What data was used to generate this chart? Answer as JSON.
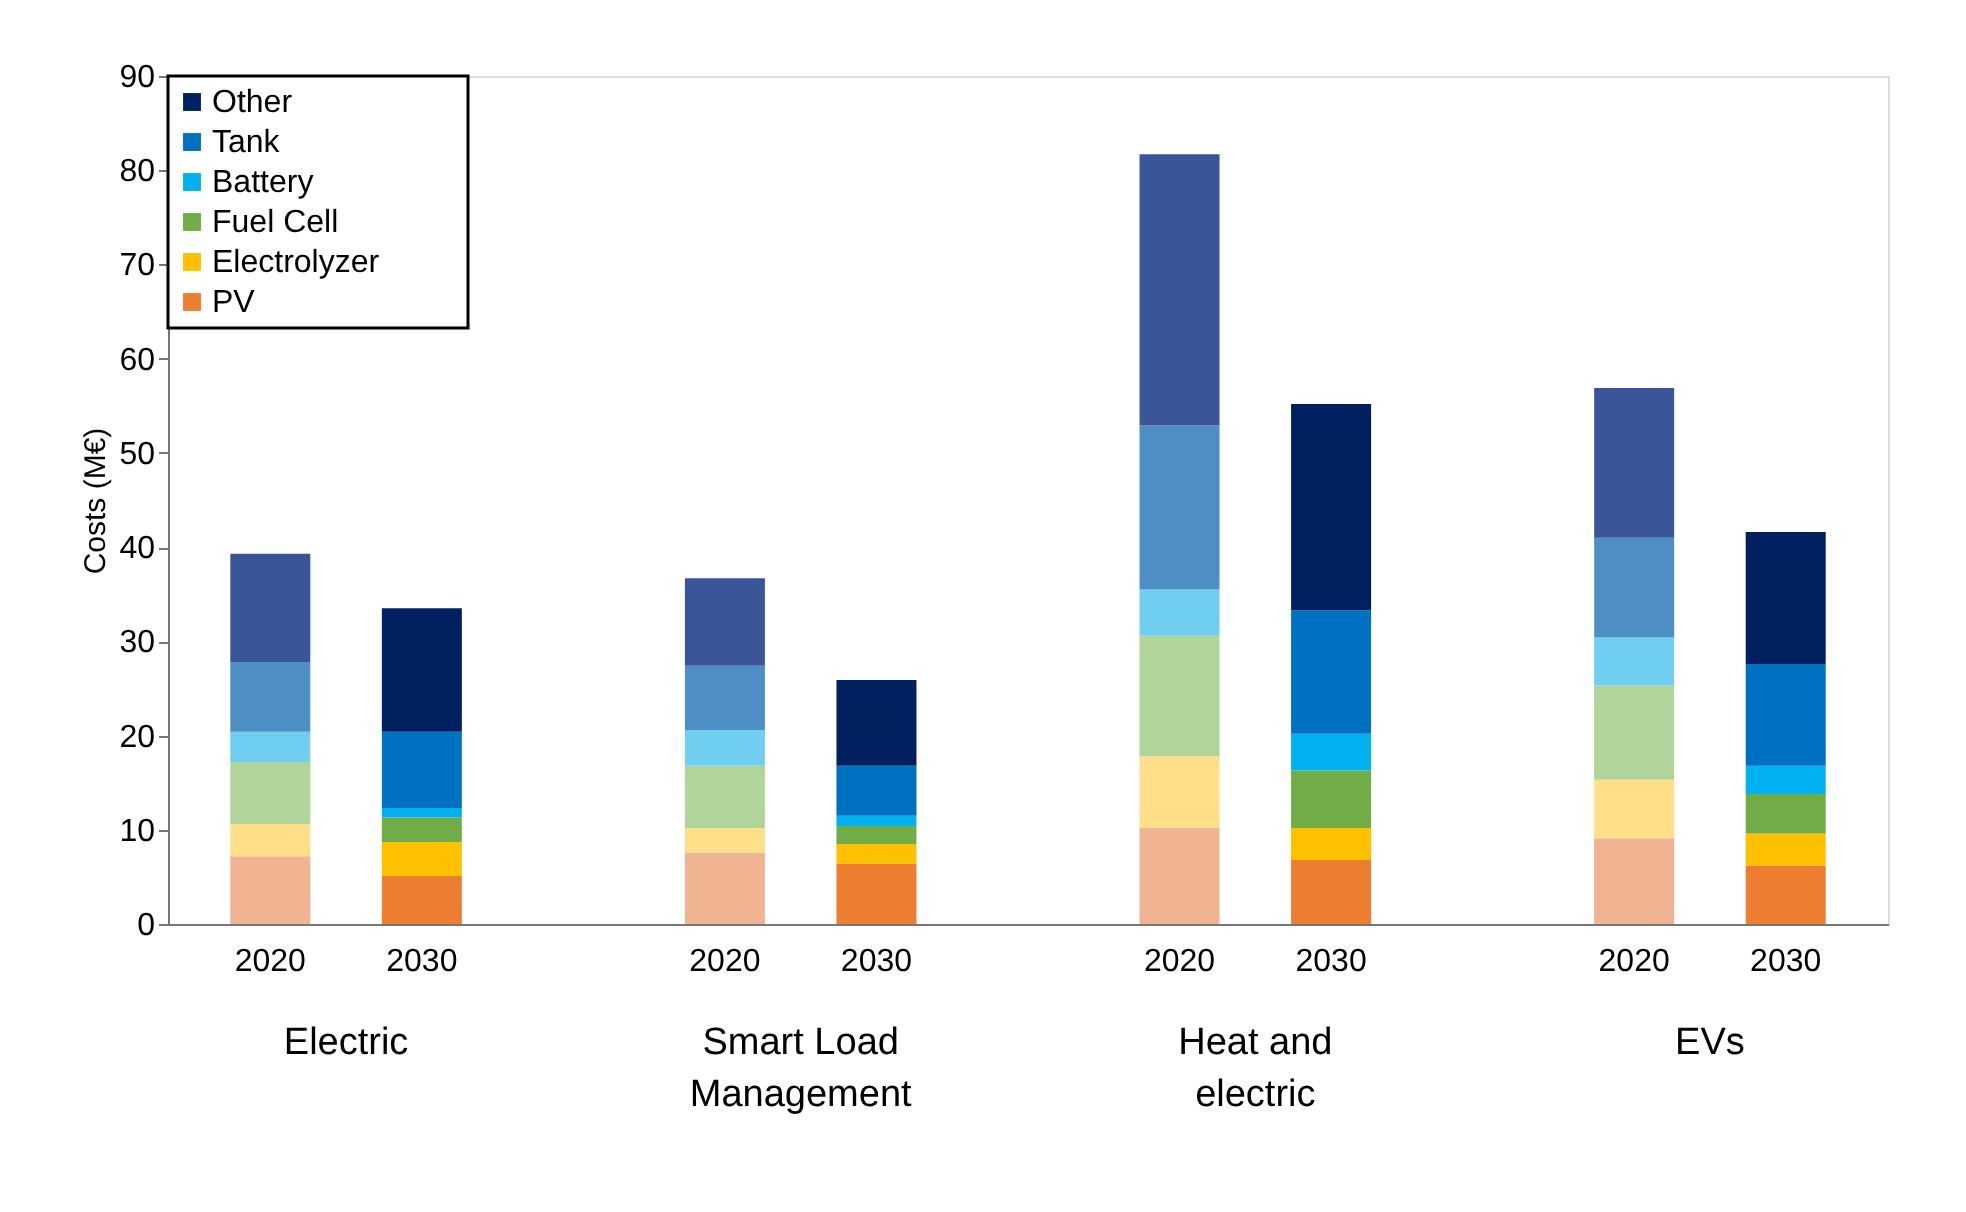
{
  "chart_data": {
    "type": "bar",
    "stacked": true,
    "ylabel": "Costs (M€)",
    "categories": [
      "2020",
      "2030",
      null,
      "2020",
      "2030",
      null,
      "2020",
      "2030",
      null,
      "2020",
      "2030"
    ],
    "annotations": [
      "Electric",
      "Smart Load\nManagement",
      "Heat and\nelectric",
      "EVs"
    ],
    "ylim": [
      0,
      90
    ],
    "yticks": [
      0,
      10,
      20,
      30,
      40,
      50,
      60,
      70,
      80,
      90
    ],
    "grid": false,
    "legend": "top left",
    "series": [
      {
        "name": "PV",
        "color": "#ed7d31",
        "colors": [
          "#f0b493",
          "#ed7d31",
          null,
          "#f0b493",
          "#ed7d31",
          null,
          "#f0b493",
          "#ed7d31",
          null,
          "#f0b493",
          "#ed7d31"
        ],
        "values": [
          7.2,
          5.1,
          null,
          7.6,
          6.4,
          null,
          10.2,
          6.8,
          null,
          9.1,
          6.2
        ]
      },
      {
        "name": "Electrolyzer",
        "color": "#ffc000",
        "colors": [
          "#ffdf8a",
          "#ffc000",
          null,
          "#ffdf8a",
          "#ffc000",
          null,
          "#ffdf8a",
          "#ffc000",
          null,
          "#ffdf8a",
          "#ffc000"
        ],
        "values": [
          3.4,
          3.6,
          null,
          2.6,
          2.1,
          null,
          7.6,
          3.4,
          null,
          6.2,
          3.4
        ]
      },
      {
        "name": "Fuel Cell",
        "color": "#70ad47",
        "colors": [
          "#b1d49a",
          "#70ad47",
          null,
          "#b1d49a",
          "#70ad47",
          null,
          "#b1d49a",
          "#70ad47",
          null,
          "#b1d49a",
          "#70ad47"
        ],
        "values": [
          6.6,
          2.6,
          null,
          6.6,
          1.9,
          null,
          12.8,
          6.1,
          null,
          10.0,
          4.2
        ]
      },
      {
        "name": "Battery",
        "color": "#00b0f0",
        "colors": [
          "#70cff1",
          "#00b0f0",
          null,
          "#70cff1",
          "#00b0f0",
          null,
          "#70cff1",
          "#00b0f0",
          null,
          "#70cff1",
          "#00b0f0"
        ],
        "values": [
          3.2,
          1.0,
          null,
          3.8,
          1.1,
          null,
          4.9,
          3.9,
          null,
          5.1,
          3.0
        ]
      },
      {
        "name": "Tank",
        "color": "#0070c0",
        "colors": [
          "#4d8fc4",
          "#0070c0",
          null,
          "#4d8fc4",
          "#0070c0",
          null,
          "#4d8fc4",
          "#0070c0",
          null,
          "#4d8fc4",
          "#0070c0"
        ],
        "values": [
          7.4,
          8.1,
          null,
          6.8,
          5.3,
          null,
          17.4,
          13.1,
          null,
          10.6,
          10.8
        ]
      },
      {
        "name": "Other",
        "color": "#002060",
        "colors": [
          "#3a5598",
          "#002060",
          null,
          "#3a5598",
          "#002060",
          null,
          "#3a5598",
          "#002060",
          null,
          "#3a5598",
          "#002060"
        ],
        "values": [
          11.5,
          13.1,
          null,
          9.3,
          9.1,
          null,
          28.8,
          21.9,
          null,
          15.9,
          14.0
        ]
      }
    ]
  }
}
